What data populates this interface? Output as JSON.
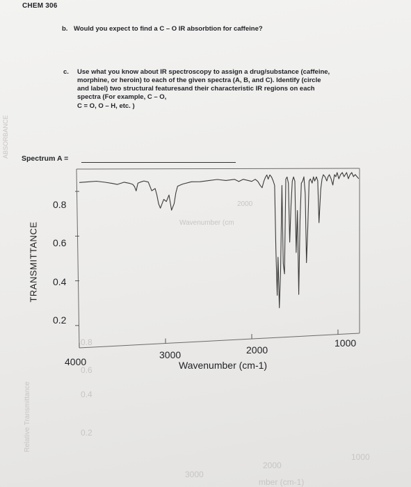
{
  "header": {
    "course": "CHEM 306"
  },
  "question_b": {
    "letter": "b.",
    "text": "Would you expect to find a C – O IR absorbtion for caffeine?"
  },
  "question_c": {
    "letter": "c.",
    "lines": [
      "Use what you know about IR spectroscopy to assign a drug/substance (caffeine,",
      "morphine, or heroin) to each of the given spectra (A, B, and C). Identify (circle",
      "and label) two structural featuresand their characteristic IR regions on each",
      "spectra (For example, C – O,",
      "C = O, O – H, etc. )"
    ]
  },
  "spectrum": {
    "label": "Spectrum A =",
    "ylabel": "TRANSMITTANCE",
    "y_ticks": [
      "0.8",
      "0.6",
      "0.4",
      "0.2"
    ],
    "x_ticks": [
      "4000",
      "3000",
      "2000",
      "1000"
    ],
    "xlabel": "Wavenumber (cm-1)"
  },
  "chart_data": {
    "type": "line",
    "xlabel": "Wavenumber (cm-1)",
    "ylabel": "TRANSMITTANCE",
    "xlim": [
      4000,
      750
    ],
    "ylim": [
      0.1,
      0.9
    ],
    "y_ticks": [
      0.8,
      0.6,
      0.4,
      0.2
    ],
    "x_ticks": [
      4000,
      3000,
      2000,
      1000
    ],
    "series": [
      {
        "x": [
          4000,
          3800,
          3700,
          3620,
          3560,
          3480,
          3420,
          3380,
          3360,
          3340,
          3320,
          3290,
          3250,
          3200,
          3160,
          3120,
          3100,
          3080,
          3060,
          3020,
          2990,
          2960,
          2930,
          2900,
          2880,
          2860,
          2800,
          2700,
          2600,
          2500,
          2400,
          2300,
          2200,
          2150,
          2100,
          2050,
          2000,
          1960,
          1930,
          1900,
          1880,
          1860,
          1840,
          1825,
          1810,
          1790,
          1770,
          1750,
          1735,
          1720,
          1705,
          1695,
          1680,
          1665,
          1650,
          1635,
          1620,
          1605,
          1590,
          1575,
          1560,
          1545,
          1530,
          1515,
          1500,
          1485,
          1470,
          1455,
          1440,
          1425,
          1410,
          1395,
          1380,
          1365,
          1350,
          1335,
          1320,
          1300,
          1285,
          1270,
          1250,
          1235,
          1220,
          1200,
          1185,
          1170,
          1150,
          1130,
          1115,
          1100,
          1080,
          1060,
          1040,
          1025,
          1010,
          990,
          970,
          950,
          930,
          915,
          900,
          880,
          860,
          840,
          820,
          800,
          780,
          760
        ],
        "y": [
          0.84,
          0.845,
          0.84,
          0.835,
          0.83,
          0.84,
          0.835,
          0.83,
          0.82,
          0.8,
          0.835,
          0.84,
          0.845,
          0.84,
          0.8,
          0.81,
          0.78,
          0.74,
          0.72,
          0.76,
          0.75,
          0.78,
          0.71,
          0.74,
          0.79,
          0.82,
          0.83,
          0.84,
          0.84,
          0.845,
          0.85,
          0.845,
          0.85,
          0.84,
          0.85,
          0.845,
          0.84,
          0.85,
          0.84,
          0.82,
          0.81,
          0.84,
          0.86,
          0.87,
          0.85,
          0.87,
          0.86,
          0.84,
          0.82,
          0.52,
          0.3,
          0.48,
          0.24,
          0.42,
          0.82,
          0.45,
          0.4,
          0.85,
          0.86,
          0.83,
          0.55,
          0.72,
          0.84,
          0.86,
          0.84,
          0.5,
          0.7,
          0.3,
          0.65,
          0.83,
          0.84,
          0.86,
          0.78,
          0.45,
          0.62,
          0.84,
          0.85,
          0.83,
          0.86,
          0.84,
          0.86,
          0.84,
          0.64,
          0.8,
          0.85,
          0.87,
          0.86,
          0.84,
          0.86,
          0.87,
          0.85,
          0.82,
          0.87,
          0.86,
          0.88,
          0.85,
          0.87,
          0.88,
          0.86,
          0.87,
          0.88,
          0.85,
          0.87,
          0.88,
          0.86,
          0.87,
          0.86,
          0.85
        ]
      }
    ]
  },
  "bleed_through": [
    "ABSORBANCE",
    "2000",
    "Wavenumber (cm",
    "Relative Transmittance",
    "0.8",
    "0.6",
    "0.4",
    "0.2",
    "3000",
    "2000",
    "1000",
    "mber (cm-1)"
  ]
}
